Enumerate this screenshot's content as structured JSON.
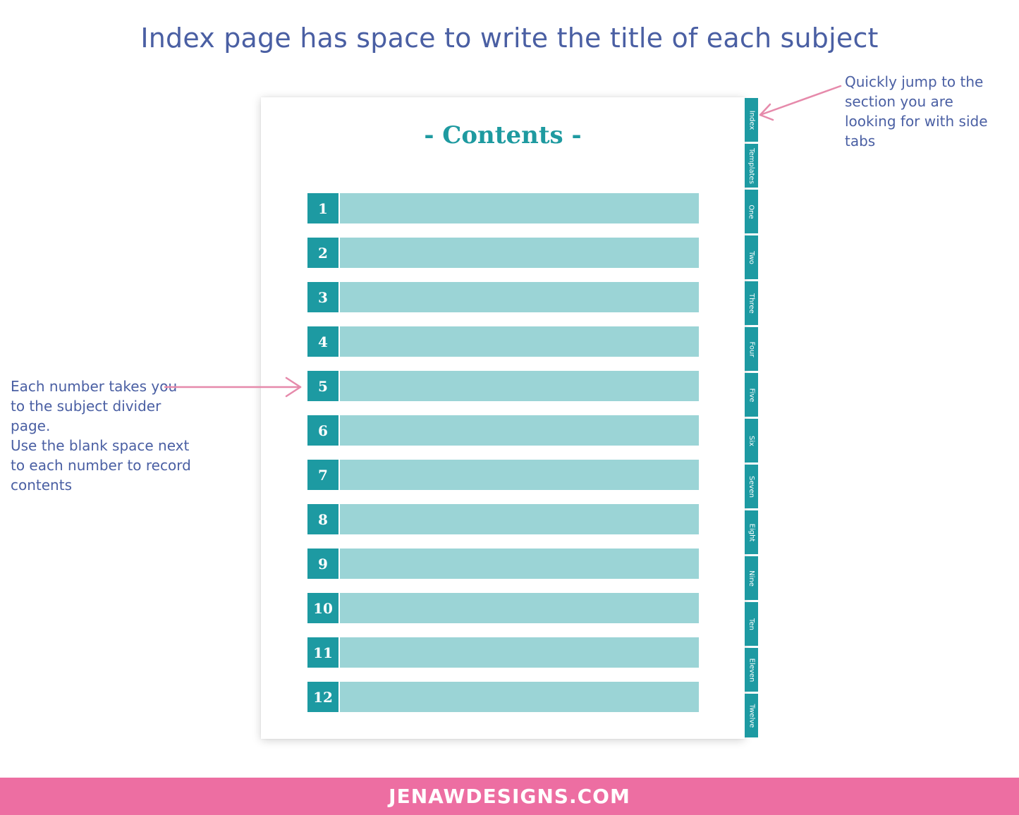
{
  "headline": "Index page has space to write the title of each subject",
  "page": {
    "title": "- Contents -",
    "entries": [
      "1",
      "2",
      "3",
      "4",
      "5",
      "6",
      "7",
      "8",
      "9",
      "10",
      "11",
      "12"
    ]
  },
  "tabs": [
    "Index",
    "Templates",
    "One",
    "Two",
    "Three",
    "Four",
    "Five",
    "Six",
    "Seven",
    "Eight",
    "Nine",
    "Ten",
    "Eleven",
    "Twelve"
  ],
  "notes": {
    "right": "Quickly jump to the\nsection you are\nlooking for with side\ntabs",
    "left": "Each number takes you\nto the subject divider page.\nUse the blank space next\nto each number to record\ncontents"
  },
  "footer": "JENAWDESIGNS.COM",
  "colors": {
    "teal": "#1d9aa2",
    "light_teal": "#9bd4d6",
    "text_blue": "#4a5fa3",
    "pink": "#ed6ea2"
  }
}
